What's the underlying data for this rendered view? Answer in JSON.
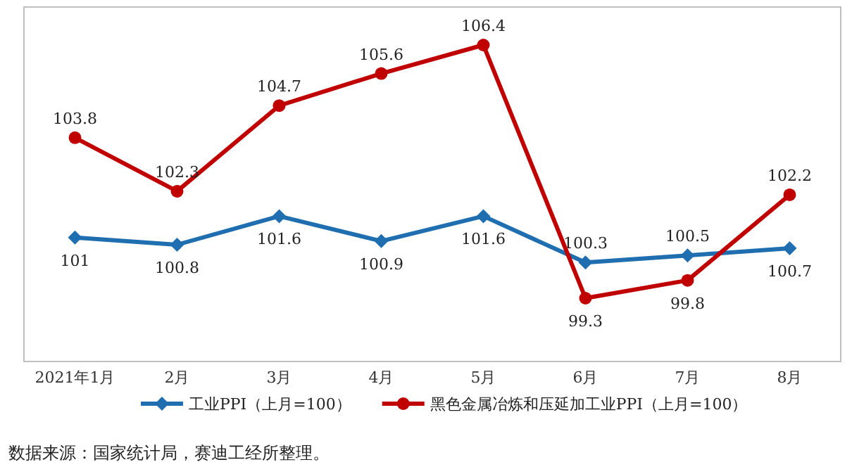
{
  "chart_data": {
    "type": "line",
    "categories": [
      "2021年1月",
      "2月",
      "3月",
      "4月",
      "5月",
      "6月",
      "7月",
      "8月"
    ],
    "series": [
      {
        "name": "工业PPI（上月=100）",
        "color": "#1f6eb0",
        "marker": "diamond",
        "values": [
          101,
          100.8,
          101.6,
          100.9,
          101.6,
          100.3,
          100.5,
          100.7
        ]
      },
      {
        "name": "黑色金属冶炼和压延加工业PPI（上月=100）",
        "color": "#c00000",
        "marker": "circle",
        "values": [
          103.8,
          102.3,
          104.7,
          105.6,
          106.4,
          99.3,
          99.8,
          102.2
        ]
      }
    ],
    "data_labels": true,
    "legend": "bottom",
    "annotations": [
      "数据来源：国家统计局，赛迪工经所整理。"
    ]
  }
}
